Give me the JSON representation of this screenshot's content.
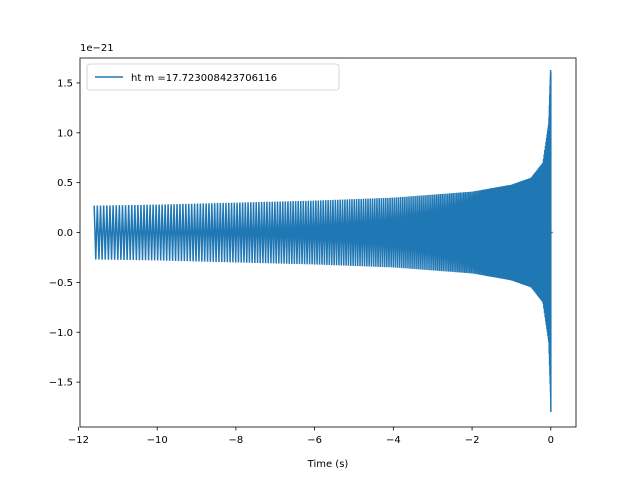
{
  "chart_data": {
    "type": "line",
    "title": "",
    "xlabel": "Time (s)",
    "ylabel": "",
    "y_scale_offset": "1e−21",
    "xlim": [
      -11.96,
      0.64
    ],
    "ylim": [
      -1.95,
      1.75
    ],
    "x_ticks": [
      -12,
      -10,
      -8,
      -6,
      -4,
      -2,
      0
    ],
    "x_tick_labels": [
      "−12",
      "−10",
      "−8",
      "−6",
      "−4",
      "−2",
      "0"
    ],
    "y_ticks": [
      -1.5,
      -1.0,
      -0.5,
      0.0,
      0.5,
      1.0,
      1.5
    ],
    "y_tick_labels": [
      "−1.5",
      "−1.0",
      "−0.5",
      "0.0",
      "0.5",
      "1.0",
      "1.5"
    ],
    "grid": false,
    "legend_position": "top-left",
    "series": [
      {
        "name": "ht m =17.723008423706116",
        "color": "#1f77b4",
        "style": "chirp-oscillation",
        "t_start": -11.6,
        "t_merger": 0.0,
        "t_end": 0.05,
        "envelope": {
          "t": [
            -11.6,
            -10,
            -8,
            -6,
            -4,
            -2,
            -1,
            -0.5,
            -0.2,
            -0.05,
            0.0
          ],
          "amplitude": [
            0.27,
            0.28,
            0.3,
            0.32,
            0.35,
            0.41,
            0.48,
            0.55,
            0.7,
            1.1,
            1.7
          ]
        },
        "peak_max": 1.6,
        "peak_min": -1.8,
        "post_merger_value": 0.0
      }
    ]
  }
}
